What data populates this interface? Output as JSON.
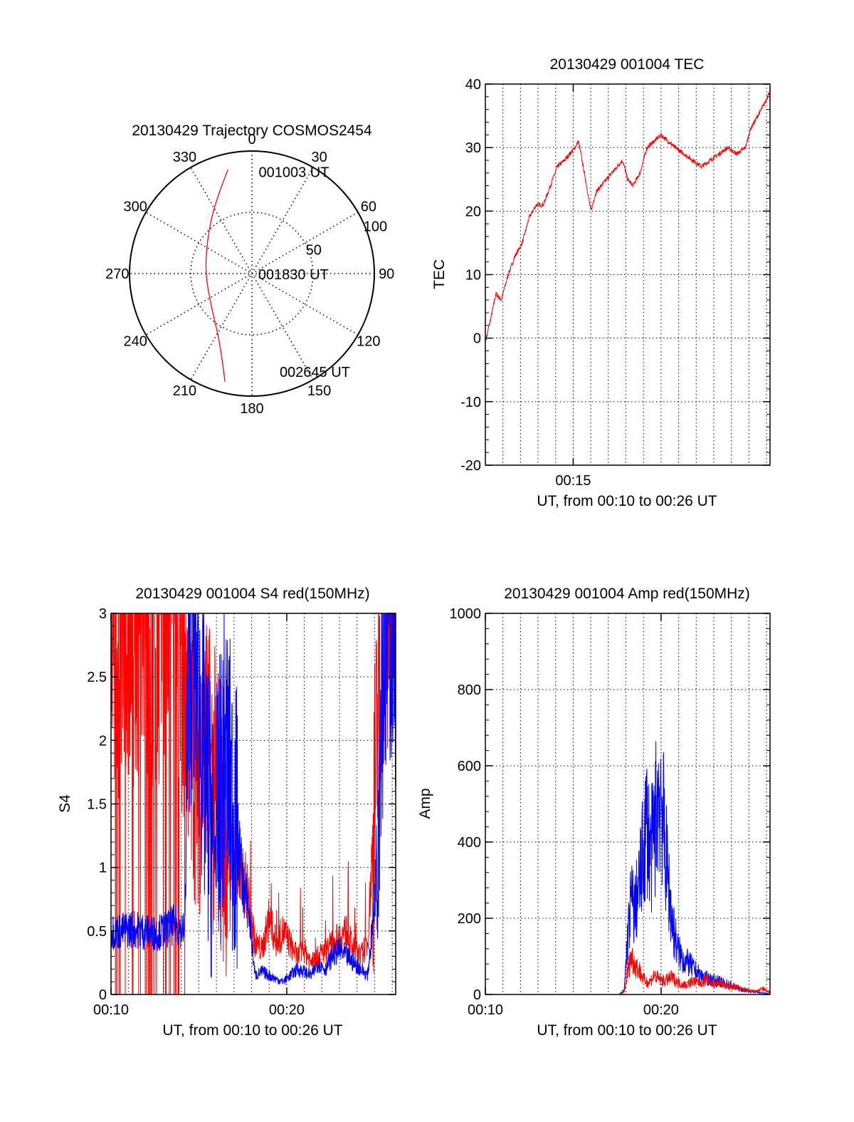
{
  "chart_data": [
    {
      "id": "trajectory",
      "type": "polar",
      "title": "20130429 Trajectory COSMOS2454",
      "azimuth_labels": [
        "0",
        "30",
        "60",
        "90",
        "120",
        "150",
        "180",
        "210",
        "240",
        "270",
        "300",
        "330"
      ],
      "radial_ticks": [
        "50",
        "100"
      ],
      "radial_range": [
        0,
        100
      ],
      "grid": true,
      "trajectory": {
        "color": "#ff0000",
        "points": [
          {
            "az": 347,
            "zen": 87
          },
          {
            "az": 332,
            "zen": 65
          },
          {
            "az": 305,
            "zen": 45
          },
          {
            "az": 268,
            "zen": 38
          },
          {
            "az": 228,
            "zen": 44
          },
          {
            "az": 205,
            "zen": 62
          },
          {
            "az": 194,
            "zen": 91
          }
        ]
      },
      "annotations": [
        {
          "text": "001003 UT",
          "az": 3,
          "zen": 83
        },
        {
          "text": "001830 UT",
          "az": 98,
          "zen": 4
        },
        {
          "text": "002645 UT",
          "az": 165,
          "zen": 83
        }
      ]
    },
    {
      "id": "tec",
      "type": "line",
      "title": "20130429 001004 TEC",
      "xlabel": "UT, from 00:10 to 00:26 UT",
      "ylabel": "TEC",
      "xlim": [
        10,
        26.2
      ],
      "ylim": [
        -20,
        40
      ],
      "yticks": [
        -20,
        -10,
        0,
        10,
        20,
        30,
        40
      ],
      "xticks": [
        {
          "value": 15,
          "label": "00:15"
        }
      ],
      "grid": true,
      "series": [
        {
          "color": "#ff0000",
          "x": [
            10.05,
            10.3,
            10.6,
            10.9,
            11.3,
            11.7,
            12.1,
            12.5,
            12.9,
            13.3,
            13.7,
            14.1,
            14.5,
            14.8,
            15.1,
            15.3,
            15.5,
            15.7,
            16.0,
            16.3,
            16.6,
            16.9,
            17.2,
            17.5,
            17.8,
            18.1,
            18.4,
            18.8,
            19.2,
            19.6,
            20.0,
            20.4,
            20.8,
            21.3,
            21.8,
            22.3,
            22.8,
            23.3,
            23.8,
            24.3,
            24.8,
            25.1,
            25.5,
            25.9,
            26.2
          ],
          "y": [
            0,
            3,
            7,
            6,
            10,
            13,
            15,
            19,
            21,
            21,
            24,
            27,
            28,
            29,
            30,
            31,
            28,
            25,
            20,
            23,
            24,
            25,
            26,
            27,
            28,
            25,
            24,
            26,
            30,
            31,
            32,
            31,
            30,
            29,
            28,
            27,
            28,
            29,
            30,
            29,
            30,
            33,
            35,
            37,
            39
          ]
        }
      ]
    },
    {
      "id": "s4",
      "type": "line",
      "title": "20130429 001004 S4 red(150MHz)",
      "xlabel": "UT, from 00:10 to 00:26 UT",
      "ylabel": "S4",
      "xlim": [
        10,
        26.2
      ],
      "ylim": [
        0,
        3
      ],
      "yticks": [
        {
          "value": 0,
          "label": "0"
        },
        {
          "value": 0.5,
          "label": "0.5"
        },
        {
          "value": 1,
          "label": "1"
        },
        {
          "value": 1.5,
          "label": "1.5"
        },
        {
          "value": 2,
          "label": "2"
        },
        {
          "value": 2.5,
          "label": "2.5"
        },
        {
          "value": 3,
          "label": "3"
        }
      ],
      "xticks": [
        {
          "value": 10,
          "label": "00:10"
        },
        {
          "value": 20,
          "label": "00:20"
        }
      ],
      "grid": true,
      "series": [
        {
          "color": "#ff0000",
          "x": [
            10.0,
            10.6,
            11.2,
            11.8,
            12.4,
            13.0,
            13.6,
            14.2,
            14.6,
            15.0,
            15.4,
            15.8,
            16.2,
            16.6,
            17.0,
            17.4,
            17.8,
            18.2,
            18.6,
            19.0,
            19.4,
            19.8,
            20.2,
            20.6,
            21.0,
            21.4,
            21.8,
            22.2,
            22.6,
            23.0,
            23.4,
            23.8,
            24.2,
            24.6,
            25.0,
            25.4,
            25.8,
            26.2
          ],
          "y": [
            3.0,
            2.5,
            2.8,
            3.0,
            2.6,
            3.0,
            2.9,
            2.5,
            2.0,
            1.8,
            1.9,
            1.6,
            1.5,
            1.3,
            1.1,
            1.0,
            0.8,
            0.4,
            0.35,
            0.6,
            0.4,
            0.5,
            0.4,
            0.3,
            0.35,
            0.25,
            0.3,
            0.35,
            0.4,
            0.45,
            0.5,
            0.35,
            0.3,
            0.4,
            1.5,
            2.8,
            3.0,
            3.0
          ]
        },
        {
          "color": "#0000ff",
          "x": [
            10.0,
            10.6,
            11.2,
            11.8,
            12.4,
            13.0,
            13.6,
            14.2,
            14.4,
            14.7,
            15.0,
            15.3,
            15.6,
            15.9,
            16.2,
            16.5,
            16.8,
            17.1,
            17.4,
            17.6,
            17.8,
            18.2,
            18.6,
            19.0,
            19.4,
            19.8,
            20.2,
            20.6,
            21.0,
            21.4,
            21.8,
            22.2,
            22.6,
            23.0,
            23.4,
            23.8,
            24.2,
            24.6,
            25.0,
            25.4,
            25.8,
            26.2
          ],
          "y": [
            0.5,
            0.5,
            0.52,
            0.5,
            0.48,
            0.5,
            0.55,
            0.5,
            2.5,
            2.8,
            2.3,
            1.8,
            1.4,
            1.1,
            1.5,
            2.0,
            1.6,
            1.3,
            1.0,
            0.8,
            0.7,
            0.15,
            0.18,
            0.15,
            0.12,
            0.1,
            0.15,
            0.2,
            0.18,
            0.15,
            0.25,
            0.2,
            0.3,
            0.35,
            0.3,
            0.25,
            0.2,
            0.15,
            0.7,
            2.5,
            3.0,
            2.8
          ]
        }
      ]
    },
    {
      "id": "amp",
      "type": "line",
      "title": "20130429 001004 Amp red(150MHz)",
      "xlabel": "UT, from 00:10 to 00:26 UT",
      "ylabel": "Amp",
      "xlim": [
        10,
        26.2
      ],
      "ylim": [
        0,
        1000
      ],
      "yticks": [
        {
          "value": 0,
          "label": "0"
        },
        {
          "value": 200,
          "label": "200"
        },
        {
          "value": 400,
          "label": "400"
        },
        {
          "value": 600,
          "label": "600"
        },
        {
          "value": 800,
          "label": "800"
        },
        {
          "value": 1000,
          "label": "1000"
        }
      ],
      "xticks": [
        {
          "value": 10,
          "label": "00:10"
        },
        {
          "value": 20,
          "label": "00:20"
        }
      ],
      "grid": true,
      "series": [
        {
          "color": "#0000ff",
          "x": [
            10.0,
            11.0,
            12.0,
            13.0,
            14.0,
            15.0,
            16.0,
            17.0,
            17.6,
            17.9,
            18.1,
            18.3,
            18.5,
            18.8,
            19.0,
            19.2,
            19.4,
            19.6,
            19.8,
            20.0,
            20.2,
            20.4,
            20.6,
            20.8,
            21.0,
            21.3,
            21.6,
            22.0,
            22.4,
            22.8,
            23.2,
            23.6,
            24.0,
            24.4,
            24.8,
            25.2,
            25.6,
            26.0,
            26.2
          ],
          "y": [
            0,
            0,
            0,
            0,
            0,
            0,
            0,
            0,
            0,
            10,
            150,
            250,
            220,
            300,
            380,
            460,
            360,
            420,
            520,
            540,
            400,
            300,
            200,
            150,
            110,
            90,
            80,
            60,
            45,
            40,
            35,
            30,
            25,
            15,
            10,
            8,
            5,
            3,
            0
          ]
        },
        {
          "color": "#ff0000",
          "x": [
            10.0,
            11.0,
            12.0,
            13.0,
            14.0,
            15.0,
            16.0,
            17.0,
            17.6,
            17.9,
            18.1,
            18.3,
            18.5,
            18.8,
            19.0,
            19.3,
            19.6,
            19.9,
            20.2,
            20.6,
            21.0,
            21.4,
            21.8,
            22.2,
            22.6,
            23.0,
            23.4,
            23.8,
            24.2,
            24.6,
            25.0,
            25.4,
            25.8,
            26.2
          ],
          "y": [
            0,
            0,
            0,
            0,
            0,
            0,
            0,
            0,
            0,
            5,
            60,
            100,
            80,
            60,
            40,
            30,
            50,
            40,
            35,
            45,
            30,
            25,
            35,
            30,
            40,
            25,
            30,
            20,
            20,
            15,
            10,
            8,
            15,
            5
          ]
        }
      ]
    }
  ]
}
